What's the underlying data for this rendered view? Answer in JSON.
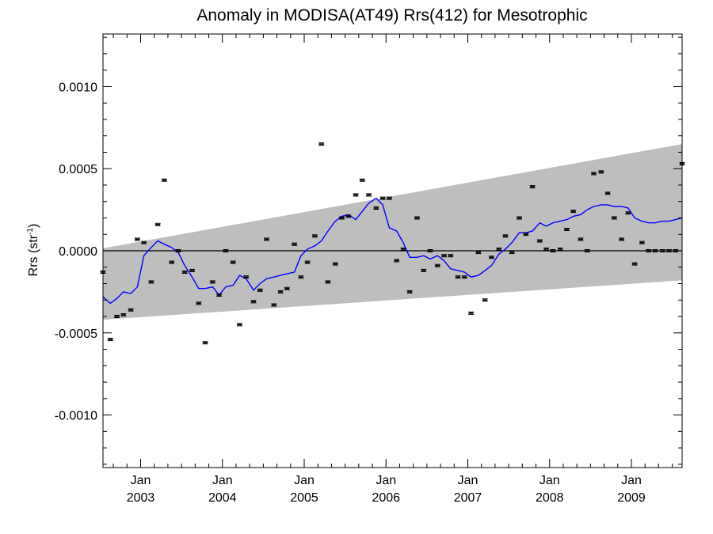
{
  "chart_data": {
    "type": "line",
    "title": "Anomaly in MODISA(AT49) Rrs(412) for Mesotrophic",
    "ylabel": "Rrs (str",
    "ylabel_sup": "-1",
    "ylabel_close": ")",
    "ylim": [
      -0.00132,
      0.00132
    ],
    "xlim": [
      2002.54,
      2009.62
    ],
    "yticks": [
      {
        "value": 0.001,
        "label": "0.0010"
      },
      {
        "value": 0.0005,
        "label": "0.0005"
      },
      {
        "value": 0.0,
        "label": "0.0000"
      },
      {
        "value": -0.0005,
        "label": "-0.0005"
      },
      {
        "value": -0.001,
        "label": "-0.0010"
      }
    ],
    "xticks": [
      {
        "value": 2003.0,
        "month": "Jan",
        "year": "2003"
      },
      {
        "value": 2004.0,
        "month": "Jan",
        "year": "2004"
      },
      {
        "value": 2005.0,
        "month": "Jan",
        "year": "2005"
      },
      {
        "value": 2006.0,
        "month": "Jan",
        "year": "2006"
      },
      {
        "value": 2007.0,
        "month": "Jan",
        "year": "2007"
      },
      {
        "value": 2008.0,
        "month": "Jan",
        "year": "2008"
      },
      {
        "value": 2009.0,
        "month": "Jan",
        "year": "2009"
      }
    ],
    "band": {
      "x": [
        2002.54,
        2009.62
      ],
      "upper": [
        1.5e-05,
        0.00065
      ],
      "lower": [
        -0.00042,
        -0.00018
      ],
      "color": "#bebebe"
    },
    "zero_line_color": "#000000",
    "series": [
      {
        "kind": "smoothed",
        "color": "#0000ff",
        "x": [
          2002.54,
          2002.63,
          2002.71,
          2002.79,
          2002.88,
          2002.96,
          2003.04,
          2003.13,
          2003.21,
          2003.29,
          2003.38,
          2003.46,
          2003.54,
          2003.63,
          2003.71,
          2003.79,
          2003.88,
          2003.96,
          2004.04,
          2004.13,
          2004.21,
          2004.29,
          2004.38,
          2004.46,
          2004.54,
          2004.63,
          2004.71,
          2004.79,
          2004.88,
          2004.96,
          2005.04,
          2005.13,
          2005.21,
          2005.29,
          2005.38,
          2005.46,
          2005.54,
          2005.63,
          2005.71,
          2005.79,
          2005.88,
          2005.96,
          2006.04,
          2006.13,
          2006.21,
          2006.29,
          2006.38,
          2006.46,
          2006.54,
          2006.63,
          2006.71,
          2006.79,
          2006.88,
          2006.96,
          2007.04,
          2007.13,
          2007.21,
          2007.29,
          2007.38,
          2007.46,
          2007.54,
          2007.63,
          2007.71,
          2007.79,
          2007.88,
          2007.96,
          2008.04,
          2008.13,
          2008.21,
          2008.29,
          2008.38,
          2008.46,
          2008.54,
          2008.63,
          2008.71,
          2008.79,
          2008.88,
          2008.96,
          2009.04,
          2009.13,
          2009.21,
          2009.29,
          2009.38,
          2009.46,
          2009.54,
          2009.62
        ],
        "y": [
          -0.00028,
          -0.00032,
          -0.00029,
          -0.00025,
          -0.00026,
          -0.00022,
          -3e-05,
          2e-05,
          6e-05,
          4e-05,
          2e-05,
          -1e-05,
          -9e-05,
          -0.00016,
          -0.00023,
          -0.00023,
          -0.00022,
          -0.00027,
          -0.00022,
          -0.00021,
          -0.00015,
          -0.00017,
          -0.00024,
          -0.0002,
          -0.00017,
          -0.00016,
          -0.00015,
          -0.00014,
          -0.00013,
          -3e-05,
          1e-05,
          3e-05,
          6e-05,
          0.00012,
          0.00018,
          0.00021,
          0.00022,
          0.00019,
          0.00024,
          0.00029,
          0.00032,
          0.00028,
          0.00014,
          0.00012,
          5e-05,
          -4e-05,
          -4e-05,
          -3e-05,
          -5e-05,
          -3e-05,
          -6e-05,
          -0.00011,
          -0.00012,
          -0.00013,
          -0.00016,
          -0.00015,
          -0.00012,
          -9e-05,
          -2e-05,
          1e-05,
          5e-05,
          0.00011,
          0.00011,
          0.00012,
          0.00017,
          0.00015,
          0.00017,
          0.00018,
          0.00019,
          0.00021,
          0.00022,
          0.00025,
          0.00027,
          0.00028,
          0.00028,
          0.00027,
          0.00027,
          0.00026,
          0.0002,
          0.00018,
          0.00017,
          0.00017,
          0.00018,
          0.00018,
          0.00019,
          0.0002
        ]
      },
      {
        "kind": "monthly-anomaly",
        "color": "#000000",
        "x": [
          2002.54,
          2002.63,
          2002.71,
          2002.79,
          2002.88,
          2002.96,
          2003.04,
          2003.13,
          2003.21,
          2003.29,
          2003.38,
          2003.46,
          2003.54,
          2003.63,
          2003.71,
          2003.79,
          2003.88,
          2003.96,
          2004.04,
          2004.13,
          2004.21,
          2004.29,
          2004.38,
          2004.46,
          2004.54,
          2004.63,
          2004.71,
          2004.79,
          2004.88,
          2004.96,
          2005.04,
          2005.13,
          2005.21,
          2005.29,
          2005.38,
          2005.46,
          2005.54,
          2005.63,
          2005.71,
          2005.79,
          2005.88,
          2005.96,
          2006.04,
          2006.13,
          2006.21,
          2006.29,
          2006.38,
          2006.46,
          2006.54,
          2006.63,
          2006.71,
          2006.79,
          2006.88,
          2006.96,
          2007.04,
          2007.13,
          2007.21,
          2007.29,
          2007.38,
          2007.46,
          2007.54,
          2007.63,
          2007.71,
          2007.79,
          2007.88,
          2007.96,
          2008.04,
          2008.13,
          2008.21,
          2008.29,
          2008.38,
          2008.46,
          2008.54,
          2008.63,
          2008.71,
          2008.79,
          2008.88,
          2008.96,
          2009.04,
          2009.13,
          2009.21,
          2009.29,
          2009.38,
          2009.46,
          2009.54,
          2009.62
        ],
        "y": [
          -0.00013,
          -0.00054,
          -0.0004,
          -0.00039,
          -0.00036,
          7e-05,
          5e-05,
          -0.00019,
          0.00016,
          0.00043,
          -7e-05,
          0.0,
          -0.00013,
          -0.00012,
          -0.00032,
          -0.00056,
          -0.00019,
          -0.00027,
          0.0,
          -7e-05,
          -0.00045,
          -0.00016,
          -0.00031,
          -0.00024,
          7e-05,
          -0.00033,
          -0.00025,
          -0.00023,
          4e-05,
          -0.00016,
          -7e-05,
          9e-05,
          0.00065,
          -0.00019,
          -8e-05,
          0.0002,
          0.00021,
          0.00034,
          0.00043,
          0.00034,
          0.00026,
          0.00032,
          0.00032,
          -6e-05,
          1e-05,
          -0.00025,
          0.0002,
          -0.00012,
          0.0,
          -9e-05,
          -3e-05,
          -3e-05,
          -0.00016,
          -0.00016,
          -0.00038,
          -1e-05,
          -0.0003,
          -4e-05,
          1e-05,
          9e-05,
          -1e-05,
          0.0002,
          0.0001,
          0.00039,
          6e-05,
          1e-05,
          0.0,
          1e-05,
          0.00013,
          0.00024,
          7e-05,
          0.0,
          0.00047,
          0.00048,
          0.00035,
          0.0002,
          7e-05,
          0.00023,
          -8e-05,
          5e-05,
          0.0,
          0.0,
          0.0,
          0.0,
          0.0,
          0.00053
        ]
      }
    ]
  }
}
